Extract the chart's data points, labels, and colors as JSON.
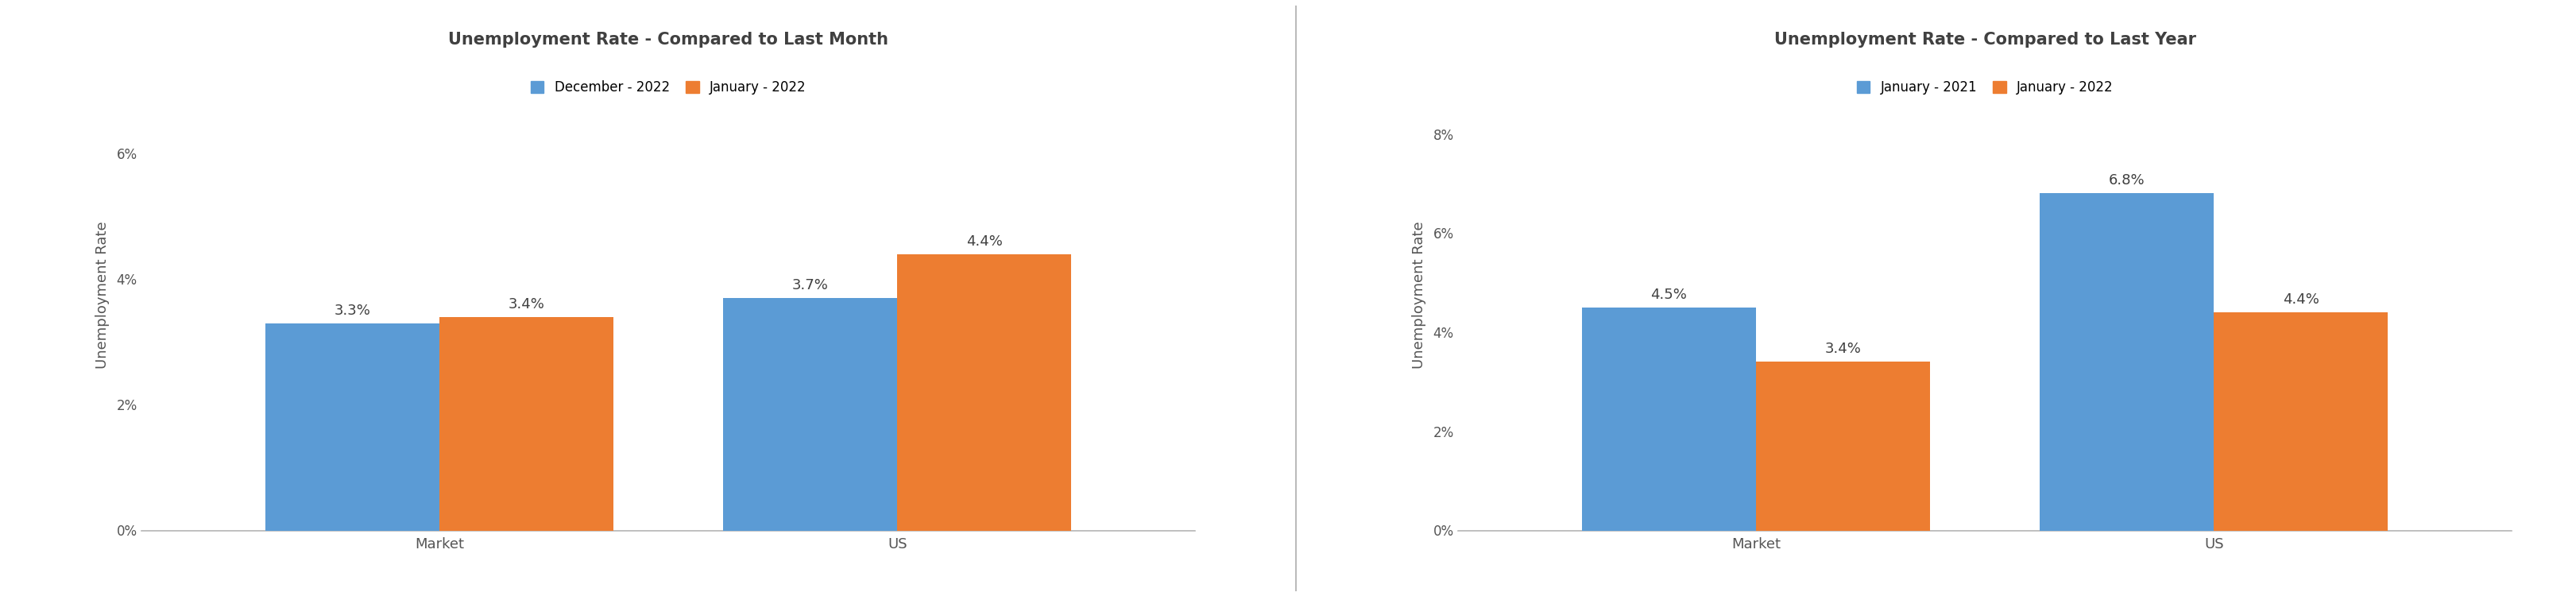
{
  "chart1": {
    "title": "Unemployment Rate - Compared to Last Month",
    "legend": [
      "December - 2022",
      "January - 2022"
    ],
    "categories": [
      "Market",
      "US"
    ],
    "series1": [
      3.3,
      3.7
    ],
    "series2": [
      3.4,
      4.4
    ],
    "ylim": [
      0,
      7.5
    ],
    "yticks": [
      0,
      2,
      4,
      6
    ],
    "ytick_labels": [
      "0%",
      "2%",
      "4%",
      "6%"
    ],
    "ylabel": "Unemployment Rate"
  },
  "chart2": {
    "title": "Unemployment Rate - Compared to Last Year",
    "legend": [
      "January - 2021",
      "January - 2022"
    ],
    "categories": [
      "Market",
      "US"
    ],
    "series1": [
      4.5,
      6.8
    ],
    "series2": [
      3.4,
      4.4
    ],
    "ylim": [
      0,
      9.5
    ],
    "yticks": [
      0,
      2,
      4,
      6,
      8
    ],
    "ytick_labels": [
      "0%",
      "2%",
      "4%",
      "6%",
      "8%"
    ],
    "ylabel": "Unemployment Rate"
  },
  "bar_color1": "#5B9BD5",
  "bar_color2": "#ED7D31",
  "bar_width": 0.38,
  "title_fontsize": 15,
  "label_fontsize": 13,
  "tick_fontsize": 12,
  "annot_fontsize": 13,
  "legend_fontsize": 12,
  "ylabel_fontsize": 13,
  "bg_color": "#ffffff",
  "divider_color": "#bbbbbb",
  "axis_line_color": "#bbbbbb",
  "text_color": "#404040",
  "tick_color": "#555555"
}
